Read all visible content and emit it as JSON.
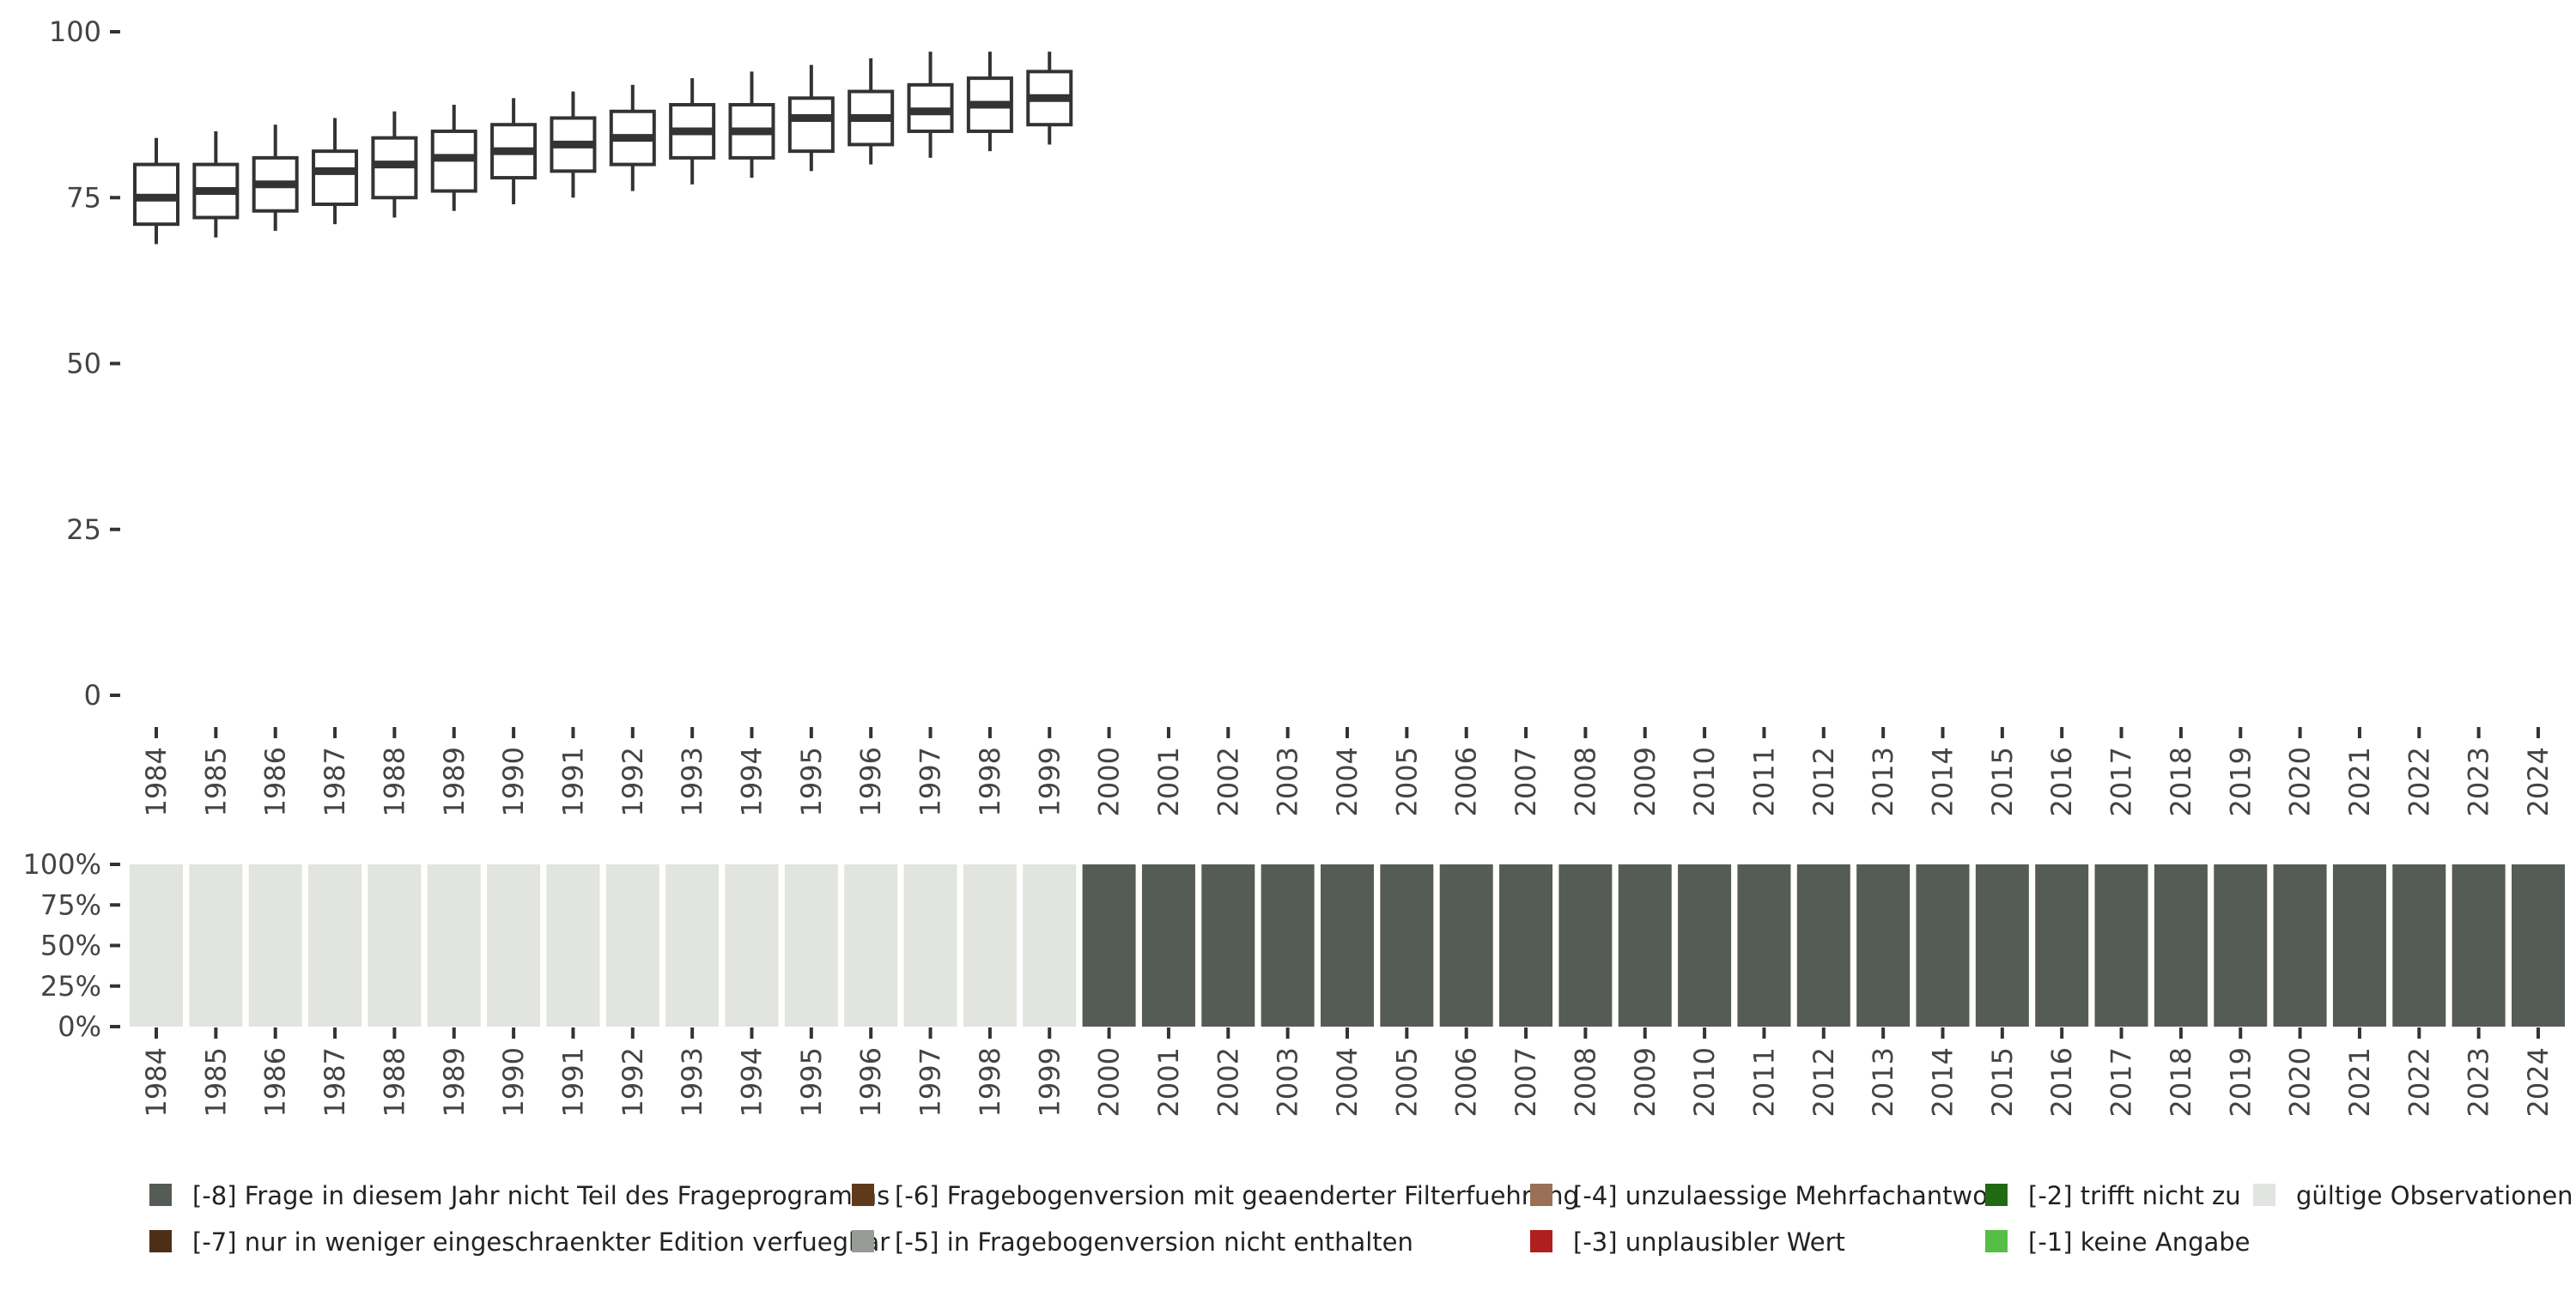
{
  "chart_data": [
    {
      "type": "boxplot",
      "x": [
        "1984",
        "1985",
        "1986",
        "1987",
        "1988",
        "1989",
        "1990",
        "1991",
        "1992",
        "1993",
        "1994",
        "1995",
        "1996",
        "1997",
        "1998",
        "1999",
        "2000",
        "2001",
        "2002",
        "2003",
        "2004",
        "2005",
        "2006",
        "2007",
        "2008",
        "2009",
        "2010",
        "2011",
        "2012",
        "2013",
        "2014",
        "2015",
        "2016",
        "2017",
        "2018",
        "2019",
        "2020",
        "2021",
        "2022",
        "2023",
        "2024"
      ],
      "boxes": [
        {
          "x": "1984",
          "whisker_low": 68,
          "q1": 71,
          "median": 75,
          "q3": 80,
          "whisker_high": 84
        },
        {
          "x": "1985",
          "whisker_low": 69,
          "q1": 72,
          "median": 76,
          "q3": 80,
          "whisker_high": 85
        },
        {
          "x": "1986",
          "whisker_low": 70,
          "q1": 73,
          "median": 77,
          "q3": 81,
          "whisker_high": 86
        },
        {
          "x": "1987",
          "whisker_low": 71,
          "q1": 74,
          "median": 79,
          "q3": 82,
          "whisker_high": 87
        },
        {
          "x": "1988",
          "whisker_low": 72,
          "q1": 75,
          "median": 80,
          "q3": 84,
          "whisker_high": 88
        },
        {
          "x": "1989",
          "whisker_low": 73,
          "q1": 76,
          "median": 81,
          "q3": 85,
          "whisker_high": 89
        },
        {
          "x": "1990",
          "whisker_low": 74,
          "q1": 78,
          "median": 82,
          "q3": 86,
          "whisker_high": 90
        },
        {
          "x": "1991",
          "whisker_low": 75,
          "q1": 79,
          "median": 83,
          "q3": 87,
          "whisker_high": 91
        },
        {
          "x": "1992",
          "whisker_low": 76,
          "q1": 80,
          "median": 84,
          "q3": 88,
          "whisker_high": 92
        },
        {
          "x": "1993",
          "whisker_low": 77,
          "q1": 81,
          "median": 85,
          "q3": 89,
          "whisker_high": 93
        },
        {
          "x": "1994",
          "whisker_low": 78,
          "q1": 81,
          "median": 85,
          "q3": 89,
          "whisker_high": 94
        },
        {
          "x": "1995",
          "whisker_low": 79,
          "q1": 82,
          "median": 87,
          "q3": 90,
          "whisker_high": 95
        },
        {
          "x": "1996",
          "whisker_low": 80,
          "q1": 83,
          "median": 87,
          "q3": 91,
          "whisker_high": 96
        },
        {
          "x": "1997",
          "whisker_low": 81,
          "q1": 85,
          "median": 88,
          "q3": 92,
          "whisker_high": 97
        },
        {
          "x": "1998",
          "whisker_low": 82,
          "q1": 85,
          "median": 89,
          "q3": 93,
          "whisker_high": 97
        },
        {
          "x": "1999",
          "whisker_low": 83,
          "q1": 86,
          "median": 90,
          "q3": 94,
          "whisker_high": 97
        }
      ],
      "ylim": [
        0,
        100
      ],
      "yticks": [
        "0",
        "25",
        "50",
        "75",
        "100"
      ],
      "ytick_values": [
        0,
        25,
        50,
        75,
        100
      ],
      "grid": false,
      "box_color": "#333333"
    },
    {
      "type": "bar",
      "stacked": true,
      "categories": [
        "1984",
        "1985",
        "1986",
        "1987",
        "1988",
        "1989",
        "1990",
        "1991",
        "1992",
        "1993",
        "1994",
        "1995",
        "1996",
        "1997",
        "1998",
        "1999",
        "2000",
        "2001",
        "2002",
        "2003",
        "2004",
        "2005",
        "2006",
        "2007",
        "2008",
        "2009",
        "2010",
        "2011",
        "2012",
        "2013",
        "2014",
        "2015",
        "2016",
        "2017",
        "2018",
        "2019",
        "2020",
        "2021",
        "2022",
        "2023",
        "2024"
      ],
      "series": [
        {
          "name": "[-8] Frage in diesem Jahr nicht Teil des Frageprogramms",
          "color": "#555b55",
          "values": [
            0,
            0,
            0,
            0,
            0,
            0,
            0,
            0,
            0,
            0,
            0,
            0,
            0,
            0,
            0,
            0,
            100,
            100,
            100,
            100,
            100,
            100,
            100,
            100,
            100,
            100,
            100,
            100,
            100,
            100,
            100,
            100,
            100,
            100,
            100,
            100,
            100,
            100,
            100,
            100,
            100
          ]
        },
        {
          "name": "gültige Observationen",
          "color": "#e1e4df",
          "values": [
            100,
            100,
            100,
            100,
            100,
            100,
            100,
            100,
            100,
            100,
            100,
            100,
            100,
            100,
            100,
            100,
            0,
            0,
            0,
            0,
            0,
            0,
            0,
            0,
            0,
            0,
            0,
            0,
            0,
            0,
            0,
            0,
            0,
            0,
            0,
            0,
            0,
            0,
            0,
            0,
            0
          ]
        }
      ],
      "ylim": [
        0,
        100
      ],
      "yticks": [
        "0%",
        "25%",
        "50%",
        "75%",
        "100%"
      ],
      "ytick_values": [
        0,
        25,
        50,
        75,
        100
      ],
      "grid": false
    }
  ],
  "legend": {
    "placement": "bottom",
    "items": [
      {
        "label": "[-8] Frage in diesem Jahr nicht Teil des Frageprogramms",
        "color": "#555b55"
      },
      {
        "label": "[-7] nur in weniger eingeschraenkter Edition verfuegbar",
        "color": "#4d2f17"
      },
      {
        "label": "[-6] Fragebogenversion mit geaenderter Filterfuehrung",
        "color": "#5e3a1a"
      },
      {
        "label": "[-5] in Fragebogenversion nicht enthalten",
        "color": "#989c96"
      },
      {
        "label": "[-4] unzulaessige Mehrfachantwort",
        "color": "#9a7057"
      },
      {
        "label": "[-3] unplausibler Wert",
        "color": "#b01f1f"
      },
      {
        "label": "[-2] trifft nicht zu",
        "color": "#1f6a12"
      },
      {
        "label": "[-1] keine Angabe",
        "color": "#55be44"
      },
      {
        "label": "gültige Observationen",
        "color": "#e1e4df"
      }
    ]
  }
}
